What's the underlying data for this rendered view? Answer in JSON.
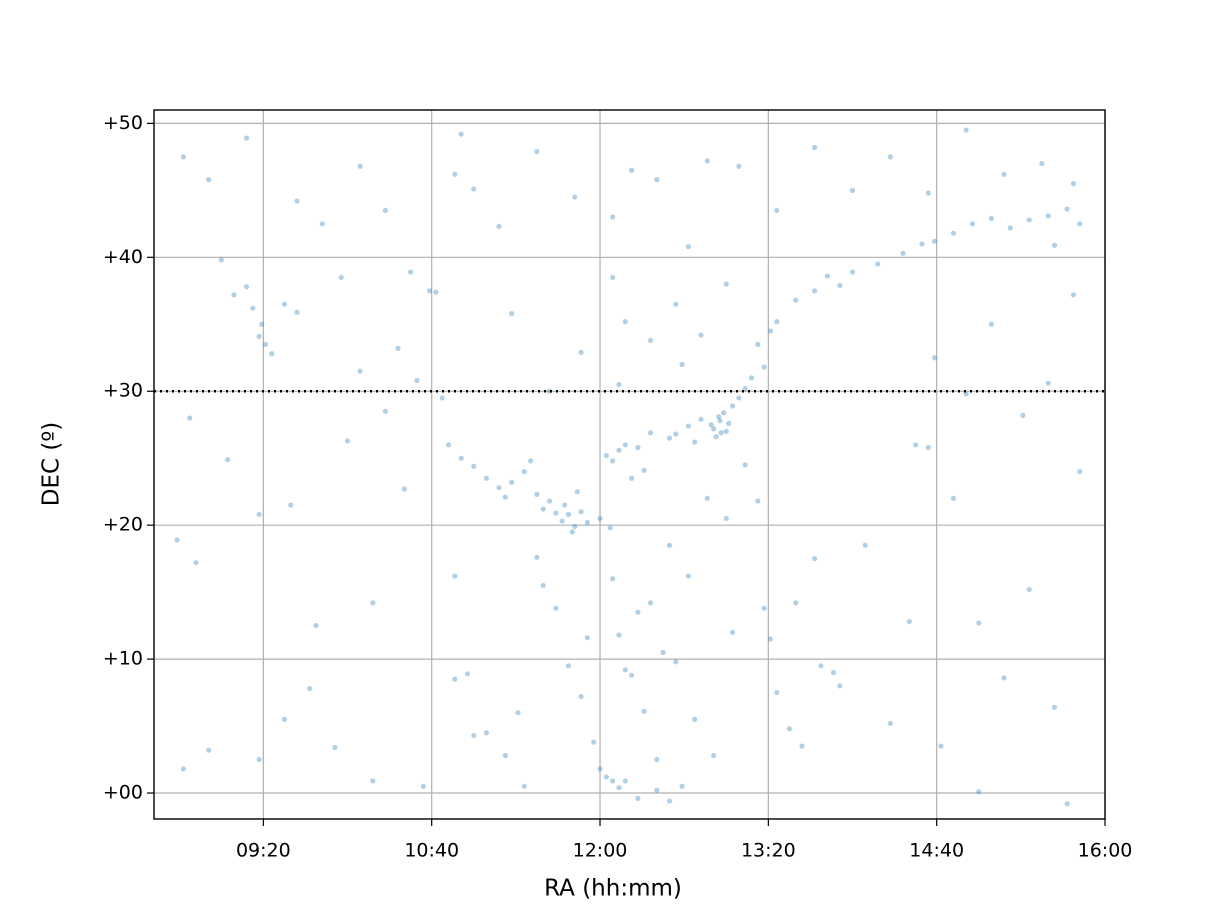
{
  "chart_data": {
    "type": "scatter",
    "x_label": "RA (hh:mm)",
    "y_label": "DEC (º)",
    "color": "#1f77b4",
    "grid": true,
    "hline": 30,
    "hline_color": "#000000",
    "xlim": [
      8.467,
      16
    ],
    "ylim": [
      -1.94,
      51
    ],
    "xticks": [
      {
        "value": 9.3333,
        "label": "09:20"
      },
      {
        "value": 10.6667,
        "label": "10:40"
      },
      {
        "value": 12,
        "label": "12:00"
      },
      {
        "value": 13.3333,
        "label": "13:20"
      },
      {
        "value": 14.6667,
        "label": "14:40"
      },
      {
        "value": 16,
        "label": "16:00"
      }
    ],
    "yticks": [
      {
        "value": 0,
        "label": "+00"
      },
      {
        "value": 10,
        "label": "+10"
      },
      {
        "value": 20,
        "label": "+20"
      },
      {
        "value": 30,
        "label": "+30"
      },
      {
        "value": 40,
        "label": "+40"
      },
      {
        "value": 50,
        "label": "+50"
      }
    ],
    "x": [
      12.9,
      12.95,
      13.0,
      12.98,
      12.92,
      13.05,
      12.88,
      12.96,
      13.02,
      12.94,
      12.6,
      12.7,
      12.75,
      12.8,
      12.55,
      13.1,
      13.2,
      13.3,
      13.25,
      13.15,
      13.35,
      13.4,
      13.55,
      13.7,
      13.8,
      13.9,
      14.0,
      14.2,
      14.4,
      14.55,
      14.65,
      14.8,
      14.95,
      15.1,
      15.25,
      15.4,
      15.55,
      15.7,
      15.8,
      15.6,
      11.7,
      11.75,
      11.8,
      11.85,
      11.72,
      11.78,
      11.65,
      11.9,
      11.6,
      11.82,
      11.1,
      11.2,
      11.3,
      11.4,
      11.5,
      11.0,
      10.9,
      11.55,
      11.45,
      11.25,
      12.0,
      12.05,
      12.1,
      12.15,
      12.08,
      12.2,
      12.25,
      12.3,
      12.35,
      12.4,
      12.2,
      12.25,
      12.3,
      12.4,
      12.5,
      12.35,
      12.15,
      12.45,
      12.6,
      12.1,
      12.0,
      12.05,
      12.1,
      11.95,
      12.15,
      12.2,
      12.3,
      12.45,
      12.55,
      12.65,
      13.3,
      13.35,
      13.4,
      13.5,
      13.6,
      13.75,
      13.85,
      13.9,
      13.7,
      13.55,
      9.3,
      9.35,
      9.32,
      9.25,
      9.2,
      9.1,
      9.0,
      9.4,
      9.5,
      9.6,
      8.7,
      8.9,
      9.2,
      9.6,
      9.8,
      10.1,
      10.3,
      10.5,
      10.7,
      10.85,
      10.9,
      11.0,
      11.2,
      11.5,
      11.8,
      12.1,
      12.25,
      12.45,
      12.7,
      12.85,
      13.1,
      13.4,
      13.7,
      14.0,
      14.3,
      14.6,
      14.9,
      15.2,
      15.5,
      15.75,
      8.65,
      8.75,
      8.8,
      9.05,
      9.3,
      9.55,
      9.75,
      10.0,
      10.2,
      10.45,
      8.7,
      8.9,
      9.3,
      9.5,
      9.7,
      9.9,
      10.2,
      10.6,
      10.85,
      11.0,
      11.1,
      11.25,
      11.4,
      11.55,
      11.65,
      11.75,
      11.85,
      11.9,
      11.5,
      11.35,
      14.1,
      14.3,
      14.45,
      14.6,
      14.8,
      15.0,
      15.2,
      15.4,
      15.6,
      15.8,
      14.5,
      14.65,
      14.9,
      15.1,
      15.35,
      15.55,
      15.75,
      14.7,
      15.0,
      15.7,
      10.4,
      10.55,
      10.65,
      10.75,
      10.85,
      10.95,
      10.3,
      10.1,
      9.95,
      10.8,
      12.55,
      12.7,
      12.85,
      13.0,
      13.15,
      13.05,
      12.75,
      12.9,
      13.25,
      12.65,
      12.1,
      12.2,
      12.4,
      12.6,
      12.8,
      13.0,
      12.15,
      11.85,
      11.6,
      11.3
    ],
    "values": [
      27.2,
      27.8,
      27.0,
      28.4,
      26.6,
      28.9,
      27.5,
      26.9,
      27.6,
      28.1,
      26.8,
      27.4,
      26.2,
      27.9,
      26.5,
      29.5,
      31.0,
      31.8,
      33.5,
      30.2,
      34.5,
      35.2,
      36.8,
      37.5,
      38.6,
      37.9,
      38.9,
      39.5,
      40.3,
      41.0,
      41.2,
      41.8,
      42.5,
      42.9,
      42.2,
      42.8,
      43.1,
      43.6,
      42.5,
      40.9,
      20.3,
      20.8,
      19.9,
      21.0,
      21.5,
      19.5,
      20.9,
      20.2,
      21.8,
      22.5,
      23.5,
      22.8,
      23.2,
      24.0,
      22.3,
      24.4,
      25.0,
      21.2,
      24.8,
      22.1,
      20.5,
      25.2,
      24.8,
      25.6,
      19.8,
      26.0,
      23.5,
      25.8,
      24.1,
      26.9,
      9.2,
      8.8,
      13.5,
      14.2,
      10.5,
      6.1,
      11.8,
      2.5,
      9.8,
      16.0,
      1.8,
      1.2,
      0.9,
      3.8,
      0.4,
      0.9,
      -0.4,
      0.2,
      -0.6,
      0.5,
      13.8,
      11.5,
      7.5,
      4.8,
      3.5,
      9.5,
      9.0,
      8.0,
      17.5,
      14.2,
      34.1,
      33.5,
      35.0,
      36.2,
      37.8,
      37.2,
      39.8,
      32.8,
      36.5,
      35.9,
      47.5,
      45.8,
      48.9,
      44.2,
      42.5,
      46.8,
      43.5,
      38.9,
      37.4,
      46.2,
      49.2,
      45.1,
      42.3,
      47.9,
      44.5,
      43.0,
      46.5,
      45.8,
      40.8,
      47.2,
      46.8,
      43.5,
      48.2,
      45.0,
      47.5,
      44.8,
      49.5,
      46.2,
      47.0,
      45.5,
      18.9,
      28.0,
      17.2,
      24.9,
      20.8,
      21.5,
      12.5,
      26.3,
      14.2,
      22.7,
      1.8,
      3.2,
      2.5,
      5.5,
      7.8,
      3.4,
      0.9,
      0.5,
      8.5,
      4.3,
      4.5,
      2.8,
      0.5,
      15.5,
      13.8,
      9.5,
      7.2,
      11.6,
      17.6,
      6.0,
      18.5,
      5.2,
      12.8,
      25.8,
      22.0,
      12.7,
      8.6,
      15.2,
      6.4,
      24.0,
      26.0,
      32.5,
      29.8,
      35.0,
      28.2,
      30.6,
      37.2,
      3.5,
      0.1,
      -0.8,
      33.2,
      30.8,
      37.5,
      29.5,
      16.2,
      8.9,
      28.5,
      31.5,
      38.5,
      26.0,
      18.5,
      16.2,
      22.0,
      20.5,
      24.5,
      12.0,
      5.5,
      2.8,
      21.8,
      32.0,
      38.5,
      35.2,
      33.8,
      36.5,
      34.2,
      38.0,
      30.5,
      32.9,
      30.0,
      35.8
    ]
  }
}
